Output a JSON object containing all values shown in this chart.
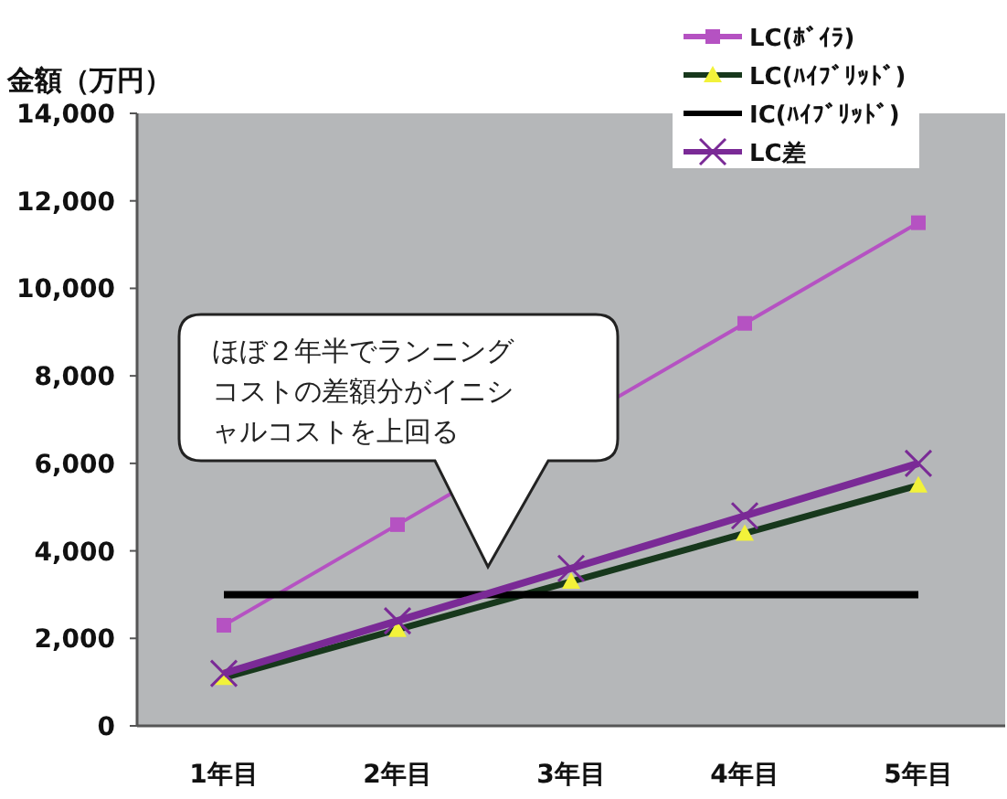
{
  "chart_data": {
    "type": "line",
    "ylabel": "金額（万円）",
    "categories": [
      "1年目",
      "2年目",
      "3年目",
      "4年目",
      "5年目"
    ],
    "series": [
      {
        "name": "LC(ﾎﾞｲﾗ)",
        "color": "#b552c2",
        "marker": "square",
        "values": [
          2300,
          4600,
          null,
          9200,
          11500
        ]
      },
      {
        "name": "LC(ﾊｲﾌﾞﾘｯﾄﾞ)",
        "color": "#17381c",
        "marker": "triangle",
        "values": [
          1100,
          2200,
          3300,
          4400,
          5500
        ]
      },
      {
        "name": "IC(ﾊｲﾌﾞﾘｯﾄﾞ)",
        "color": "#000000",
        "marker": "none",
        "values": [
          3000,
          3000,
          3000,
          3000,
          3000
        ]
      },
      {
        "name": "LC差",
        "color": "#7a2a96",
        "marker": "cross",
        "values": [
          1200,
          2400,
          3600,
          4800,
          6000
        ]
      }
    ],
    "ylim": [
      0,
      14000
    ],
    "yticks": [
      0,
      {
        "value": 2000,
        "label": "2,000"
      },
      {
        "value": 4000,
        "label": "4,000"
      },
      {
        "value": 6000,
        "label": "6,000"
      },
      {
        "value": 8000,
        "label": "8,000"
      },
      {
        "value": 10000,
        "label": "10,000"
      },
      {
        "value": 12000,
        "label": "12,000"
      },
      {
        "value": 14000,
        "label": "14,000"
      }
    ],
    "annotations": [
      "ほぼ２年半でランニングコストの差額分がイニシャルコストを上回る"
    ],
    "legend": "top right",
    "grid": false
  }
}
